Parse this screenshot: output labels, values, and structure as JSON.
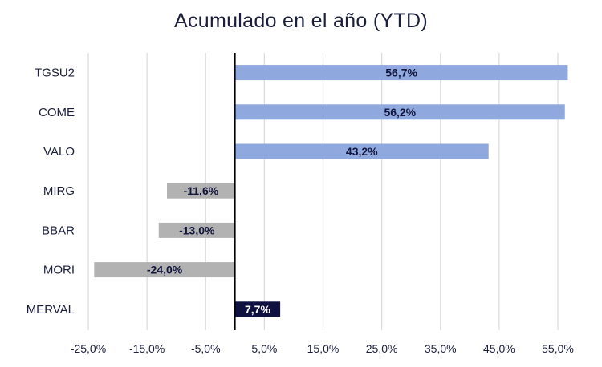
{
  "chart_data": {
    "type": "bar",
    "orientation": "horizontal",
    "title": "Acumulado en el año (YTD)",
    "xlabel": "",
    "ylabel": "",
    "categories": [
      "TGSU2",
      "COME",
      "VALO",
      "MIRG",
      "BBAR",
      "MORI",
      "MERVAL"
    ],
    "values": [
      56.7,
      56.2,
      43.2,
      -11.6,
      -13.0,
      -24.0,
      7.7
    ],
    "value_labels": [
      "56,7%",
      "56,2%",
      "43,2%",
      "-11,6%",
      "-13,0%",
      "-24,0%",
      "7,7%"
    ],
    "xlim": [
      -25,
      57
    ],
    "xticks": [
      -25,
      -15,
      -5,
      5,
      15,
      25,
      35,
      45,
      55
    ],
    "xtick_labels": [
      "-25,0%",
      "-15,0%",
      "-5,0%",
      "5,0%",
      "15,0%",
      "25,0%",
      "35,0%",
      "45,0%",
      "55,0%"
    ],
    "grid": "vertical",
    "legend": "none",
    "colors": {
      "positive": "#8fa8de",
      "negative": "#b2b2b2",
      "index": "#0f1240",
      "label_dark": "#12163d",
      "label_light": "#ffffff",
      "grid": "#dcdcdc",
      "zero_line": "#000000",
      "text": "#1b1f3b"
    }
  }
}
